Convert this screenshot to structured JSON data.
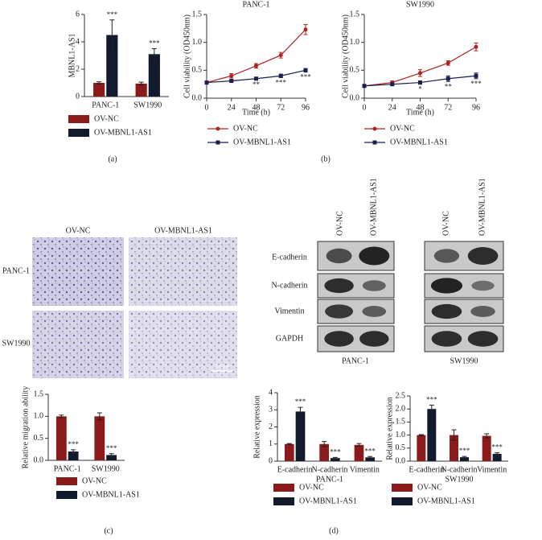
{
  "panel_labels": [
    "(a)",
    "(b)",
    "(c)",
    "(d)"
  ],
  "transwell": {
    "columns": [
      "OV-NC",
      "OV-MBNL1-AS1"
    ],
    "rows": [
      "PANC-1",
      "SW1990"
    ],
    "scale_bar": "200 μm"
  },
  "western_blot": {
    "columns": [
      "OV-NC",
      "OV-MBNL1-AS1"
    ],
    "rows": [
      "E-cadherin",
      "N-cadherin",
      "Vimentin",
      "GAPDH"
    ],
    "cell_lines": [
      "PANC-1",
      "SW1990"
    ]
  },
  "chart_data": [
    {
      "type": "bar",
      "y_label": "MBNL1-AS1",
      "categories": [
        "PANC-1",
        "SW1990"
      ],
      "series": [
        {
          "name": "OV-NC",
          "color": "#8b1a1a",
          "values": [
            1.0,
            0.95
          ],
          "errors": [
            0.08,
            0.1
          ]
        },
        {
          "name": "OV-MBNL1-AS1",
          "color": "#121a2e",
          "values": [
            4.5,
            3.1
          ],
          "errors": [
            1.1,
            0.4
          ],
          "significance": [
            "***",
            "***"
          ]
        }
      ],
      "ylim": [
        0,
        6
      ],
      "yticks": [
        0,
        2,
        4,
        6
      ]
    },
    {
      "type": "line",
      "title": "PANC-1",
      "x_label": "Time (h)",
      "y_label": "Cell viability (OD450nm)",
      "x": [
        0,
        24,
        48,
        72,
        96
      ],
      "series": [
        {
          "name": "OV-NC",
          "color": "#b22222",
          "values": [
            0.28,
            0.4,
            0.58,
            0.77,
            1.23
          ],
          "errors": [
            0.02,
            0.04,
            0.04,
            0.05,
            0.09
          ]
        },
        {
          "name": "OV-MBNL1-AS1",
          "color": "#1a1f4d",
          "values": [
            0.28,
            0.31,
            0.35,
            0.4,
            0.5
          ],
          "errors": [
            0.02,
            0.02,
            0.02,
            0.03,
            0.03
          ],
          "significance": [
            null,
            null,
            "**",
            "***",
            "***"
          ]
        }
      ],
      "xlim": [
        0,
        96
      ],
      "xticks": [
        0,
        24,
        48,
        72,
        96
      ],
      "ylim": [
        0,
        1.5
      ],
      "yticks": [
        {
          "value": 0,
          "label": "0.0"
        },
        0.5,
        {
          "value": 1,
          "label": "1.0"
        },
        1.5
      ]
    },
    {
      "type": "line",
      "title": "SW1990",
      "x_label": "Time (h)",
      "y_label": "Cell viability (OD450nm)",
      "x": [
        0,
        24,
        48,
        72,
        96
      ],
      "series": [
        {
          "name": "OV-NC",
          "color": "#b22222",
          "values": [
            0.22,
            0.28,
            0.45,
            0.63,
            0.92
          ],
          "errors": [
            0.02,
            0.03,
            0.06,
            0.04,
            0.07
          ]
        },
        {
          "name": "OV-MBNL1-AS1",
          "color": "#1a1f4d",
          "values": [
            0.22,
            0.25,
            0.28,
            0.35,
            0.4
          ],
          "errors": [
            0.02,
            0.02,
            0.03,
            0.05,
            0.05
          ],
          "significance": [
            null,
            null,
            "*",
            "**",
            "***"
          ]
        }
      ],
      "xlim": [
        0,
        96
      ],
      "xticks": [
        0,
        24,
        48,
        72,
        96
      ],
      "ylim": [
        0,
        1.5
      ],
      "yticks": [
        {
          "value": 0,
          "label": "0.0"
        },
        0.5,
        {
          "value": 1,
          "label": "1.0"
        },
        1.5
      ]
    },
    {
      "type": "bar",
      "y_label": "Relative migration ability",
      "categories": [
        "PANC-1",
        "SW1990"
      ],
      "series": [
        {
          "name": "OV-NC",
          "color": "#8b1a1a",
          "values": [
            1.0,
            1.0
          ],
          "errors": [
            0.03,
            0.08
          ]
        },
        {
          "name": "OV-MBNL1-AS1",
          "color": "#121a2e",
          "values": [
            0.2,
            0.12
          ],
          "errors": [
            0.04,
            0.03
          ],
          "significance": [
            "***",
            "***"
          ]
        }
      ],
      "ylim": [
        0,
        1.5
      ],
      "yticks": [
        {
          "value": 0,
          "label": "0.0"
        },
        0.5,
        {
          "value": 1,
          "label": "1.0"
        },
        1.5
      ]
    },
    {
      "type": "bar",
      "y_label": "Relative expression",
      "x_label": "PANC-1",
      "categories": [
        "E-cadherin",
        "N-cadherin",
        "Vimentin"
      ],
      "series": [
        {
          "name": "OV-NC",
          "color": "#8b1a1a",
          "values": [
            1.0,
            1.0,
            0.95
          ],
          "errors": [
            0.03,
            0.15,
            0.08
          ]
        },
        {
          "name": "OV-MBNL1-AS1",
          "color": "#121a2e",
          "values": [
            2.9,
            0.18,
            0.22
          ],
          "errors": [
            0.25,
            0.04,
            0.05
          ],
          "significance": [
            "***",
            "***",
            "***"
          ]
        }
      ],
      "ylim": [
        0,
        4
      ],
      "yticks": [
        0,
        1,
        2,
        3,
        4
      ]
    },
    {
      "type": "bar",
      "y_label": "Relative expression",
      "x_label": "SW1990",
      "categories": [
        "E-cadherin",
        "N-cadherin",
        "Vimentin"
      ],
      "series": [
        {
          "name": "OV-NC",
          "color": "#8b1a1a",
          "values": [
            1.0,
            1.0,
            0.97
          ],
          "errors": [
            0.02,
            0.2,
            0.08
          ]
        },
        {
          "name": "OV-MBNL1-AS1",
          "color": "#121a2e",
          "values": [
            2.0,
            0.15,
            0.28
          ],
          "errors": [
            0.15,
            0.03,
            0.04
          ],
          "significance": [
            "***",
            "***",
            "***"
          ]
        }
      ],
      "ylim": [
        0,
        2.5
      ],
      "yticks": [
        {
          "value": 0,
          "label": "0.0"
        },
        0.5,
        {
          "value": 1,
          "label": "1.0"
        },
        1.5,
        {
          "value": 2,
          "label": "2.0"
        },
        2.5
      ]
    }
  ]
}
